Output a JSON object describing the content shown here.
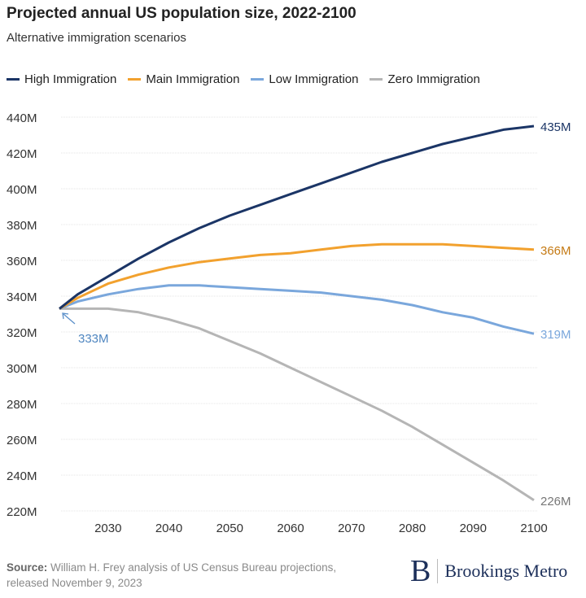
{
  "chart_data": {
    "type": "line",
    "title": "Projected annual US population size, 2022-2100",
    "subtitle": "Alternative immigration scenarios",
    "x": [
      2022,
      2025,
      2030,
      2035,
      2040,
      2045,
      2050,
      2055,
      2060,
      2065,
      2070,
      2075,
      2080,
      2085,
      2090,
      2095,
      2100
    ],
    "series": [
      {
        "name": "High Immigration",
        "color": "#1b3566",
        "end_label": "435M",
        "values": [
          333,
          341,
          351,
          361,
          370,
          378,
          385,
          391,
          397,
          403,
          409,
          415,
          420,
          425,
          429,
          433,
          435
        ]
      },
      {
        "name": "Main Immigration",
        "color": "#f2a12e",
        "end_label": "366M",
        "values": [
          333,
          339,
          347,
          352,
          356,
          359,
          361,
          363,
          364,
          366,
          368,
          369,
          369,
          369,
          368,
          367,
          366
        ]
      },
      {
        "name": "Low Immigration",
        "color": "#7aa7dc",
        "end_label": "319M",
        "values": [
          333,
          337,
          341,
          344,
          346,
          346,
          345,
          344,
          343,
          342,
          340,
          338,
          335,
          331,
          328,
          323,
          319
        ]
      },
      {
        "name": "Zero Immigration",
        "color": "#b5b5b5",
        "end_label": "226M",
        "values": [
          333,
          333,
          333,
          331,
          327,
          322,
          315,
          308,
          300,
          292,
          284,
          276,
          267,
          257,
          247,
          237,
          226
        ]
      }
    ],
    "start_annotation": "333M",
    "ylim": [
      220,
      440
    ],
    "yticks": [
      "220M",
      "240M",
      "260M",
      "280M",
      "300M",
      "320M",
      "340M",
      "360M",
      "380M",
      "400M",
      "420M",
      "440M"
    ],
    "xticks": [
      "2030",
      "2040",
      "2050",
      "2060",
      "2070",
      "2080",
      "2090",
      "2100"
    ],
    "grid": true,
    "legend": "top"
  },
  "footer": {
    "source_label": "Source:",
    "source_text": " William H. Frey analysis of US Census Bureau projections, released November 9, 2023"
  },
  "logo": {
    "letter": "B",
    "text": "Brookings Metro"
  }
}
